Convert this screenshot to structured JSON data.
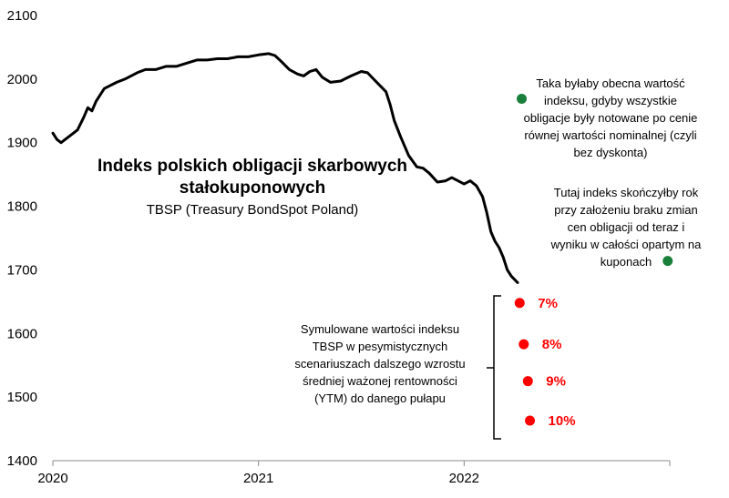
{
  "chart_data": {
    "type": "line",
    "title": "Indeks polskich obligacji skarbowych stałokuponowych",
    "title_lines": [
      "Indeks polskich obligacji skarbowych",
      "stałokuponowych"
    ],
    "subtitle": "TBSP (Treasury BondSpot Poland)",
    "xlabel": "",
    "ylabel": "",
    "x_tick_labels": [
      "2020",
      "2021",
      "2022"
    ],
    "y_ticks": [
      1400,
      1500,
      1600,
      1700,
      1800,
      1900,
      2000,
      2100
    ],
    "ylim": [
      1400,
      2100
    ],
    "xlim": [
      2020.0,
      2023.0
    ],
    "grid": false,
    "series": [
      {
        "color": "#000000",
        "points": [
          [
            2020.0,
            1915
          ],
          [
            2020.02,
            1905
          ],
          [
            2020.04,
            1900
          ],
          [
            2020.06,
            1905
          ],
          [
            2020.08,
            1910
          ],
          [
            2020.1,
            1915
          ],
          [
            2020.12,
            1920
          ],
          [
            2020.15,
            1940
          ],
          [
            2020.17,
            1955
          ],
          [
            2020.19,
            1950
          ],
          [
            2020.21,
            1965
          ],
          [
            2020.23,
            1975
          ],
          [
            2020.25,
            1985
          ],
          [
            2020.28,
            1990
          ],
          [
            2020.31,
            1995
          ],
          [
            2020.35,
            2000
          ],
          [
            2020.38,
            2005
          ],
          [
            2020.41,
            2010
          ],
          [
            2020.45,
            2015
          ],
          [
            2020.5,
            2015
          ],
          [
            2020.55,
            2020
          ],
          [
            2020.6,
            2020
          ],
          [
            2020.65,
            2025
          ],
          [
            2020.7,
            2030
          ],
          [
            2020.75,
            2030
          ],
          [
            2020.8,
            2032
          ],
          [
            2020.85,
            2032
          ],
          [
            2020.9,
            2035
          ],
          [
            2020.95,
            2035
          ],
          [
            2021.0,
            2038
          ],
          [
            2021.05,
            2040
          ],
          [
            2021.08,
            2037
          ],
          [
            2021.11,
            2028
          ],
          [
            2021.15,
            2015
          ],
          [
            2021.19,
            2008
          ],
          [
            2021.22,
            2005
          ],
          [
            2021.25,
            2012
          ],
          [
            2021.28,
            2015
          ],
          [
            2021.31,
            2003
          ],
          [
            2021.35,
            1995
          ],
          [
            2021.4,
            1997
          ],
          [
            2021.45,
            2005
          ],
          [
            2021.5,
            2012
          ],
          [
            2021.53,
            2010
          ],
          [
            2021.56,
            2000
          ],
          [
            2021.59,
            1990
          ],
          [
            2021.62,
            1980
          ],
          [
            2021.64,
            1960
          ],
          [
            2021.66,
            1935
          ],
          [
            2021.69,
            1910
          ],
          [
            2021.73,
            1880
          ],
          [
            2021.77,
            1862
          ],
          [
            2021.8,
            1860
          ],
          [
            2021.83,
            1852
          ],
          [
            2021.87,
            1838
          ],
          [
            2021.91,
            1840
          ],
          [
            2021.94,
            1845
          ],
          [
            2022.0,
            1835
          ],
          [
            2022.03,
            1840
          ],
          [
            2022.06,
            1832
          ],
          [
            2022.09,
            1815
          ],
          [
            2022.11,
            1790
          ],
          [
            2022.13,
            1760
          ],
          [
            2022.15,
            1745
          ],
          [
            2022.17,
            1735
          ],
          [
            2022.19,
            1720
          ],
          [
            2022.21,
            1700
          ],
          [
            2022.23,
            1690
          ],
          [
            2022.26,
            1680
          ]
        ]
      }
    ],
    "scenario_points": [
      {
        "x": 2022.27,
        "y": 1648,
        "label": "7%"
      },
      {
        "x": 2022.29,
        "y": 1583,
        "label": "8%"
      },
      {
        "x": 2022.31,
        "y": 1525,
        "label": "9%"
      },
      {
        "x": 2022.32,
        "y": 1463,
        "label": "10%"
      }
    ],
    "reference_points": [
      {
        "x": 2022.28,
        "y": 1969
      },
      {
        "x": 2022.99,
        "y": 1714
      }
    ],
    "scenario_color": "#ff0000",
    "reference_color": "#1a7f3a",
    "annotations": {
      "nominal_lines": [
        "Taka byłaby obecna wartość",
        "indeksu, gdyby wszystkie",
        "obligacje były notowane po cenie",
        "równej wartości nominalnej (czyli",
        "bez dyskonta)"
      ],
      "coupon_lines": [
        "Tutaj indeks skończyłby rok",
        "przy założeniu braku zmian",
        "cen obligacji od teraz i",
        "wyniku w całości opartym na",
        "kuponach"
      ],
      "simulated_lines": [
        "Symulowane wartości indeksu",
        "TBSP w pesymistycznych",
        "scenariuszach dalszego wzrostu",
        "średniej ważonej rentowności",
        "(YTM) do danego pułapu"
      ]
    }
  }
}
